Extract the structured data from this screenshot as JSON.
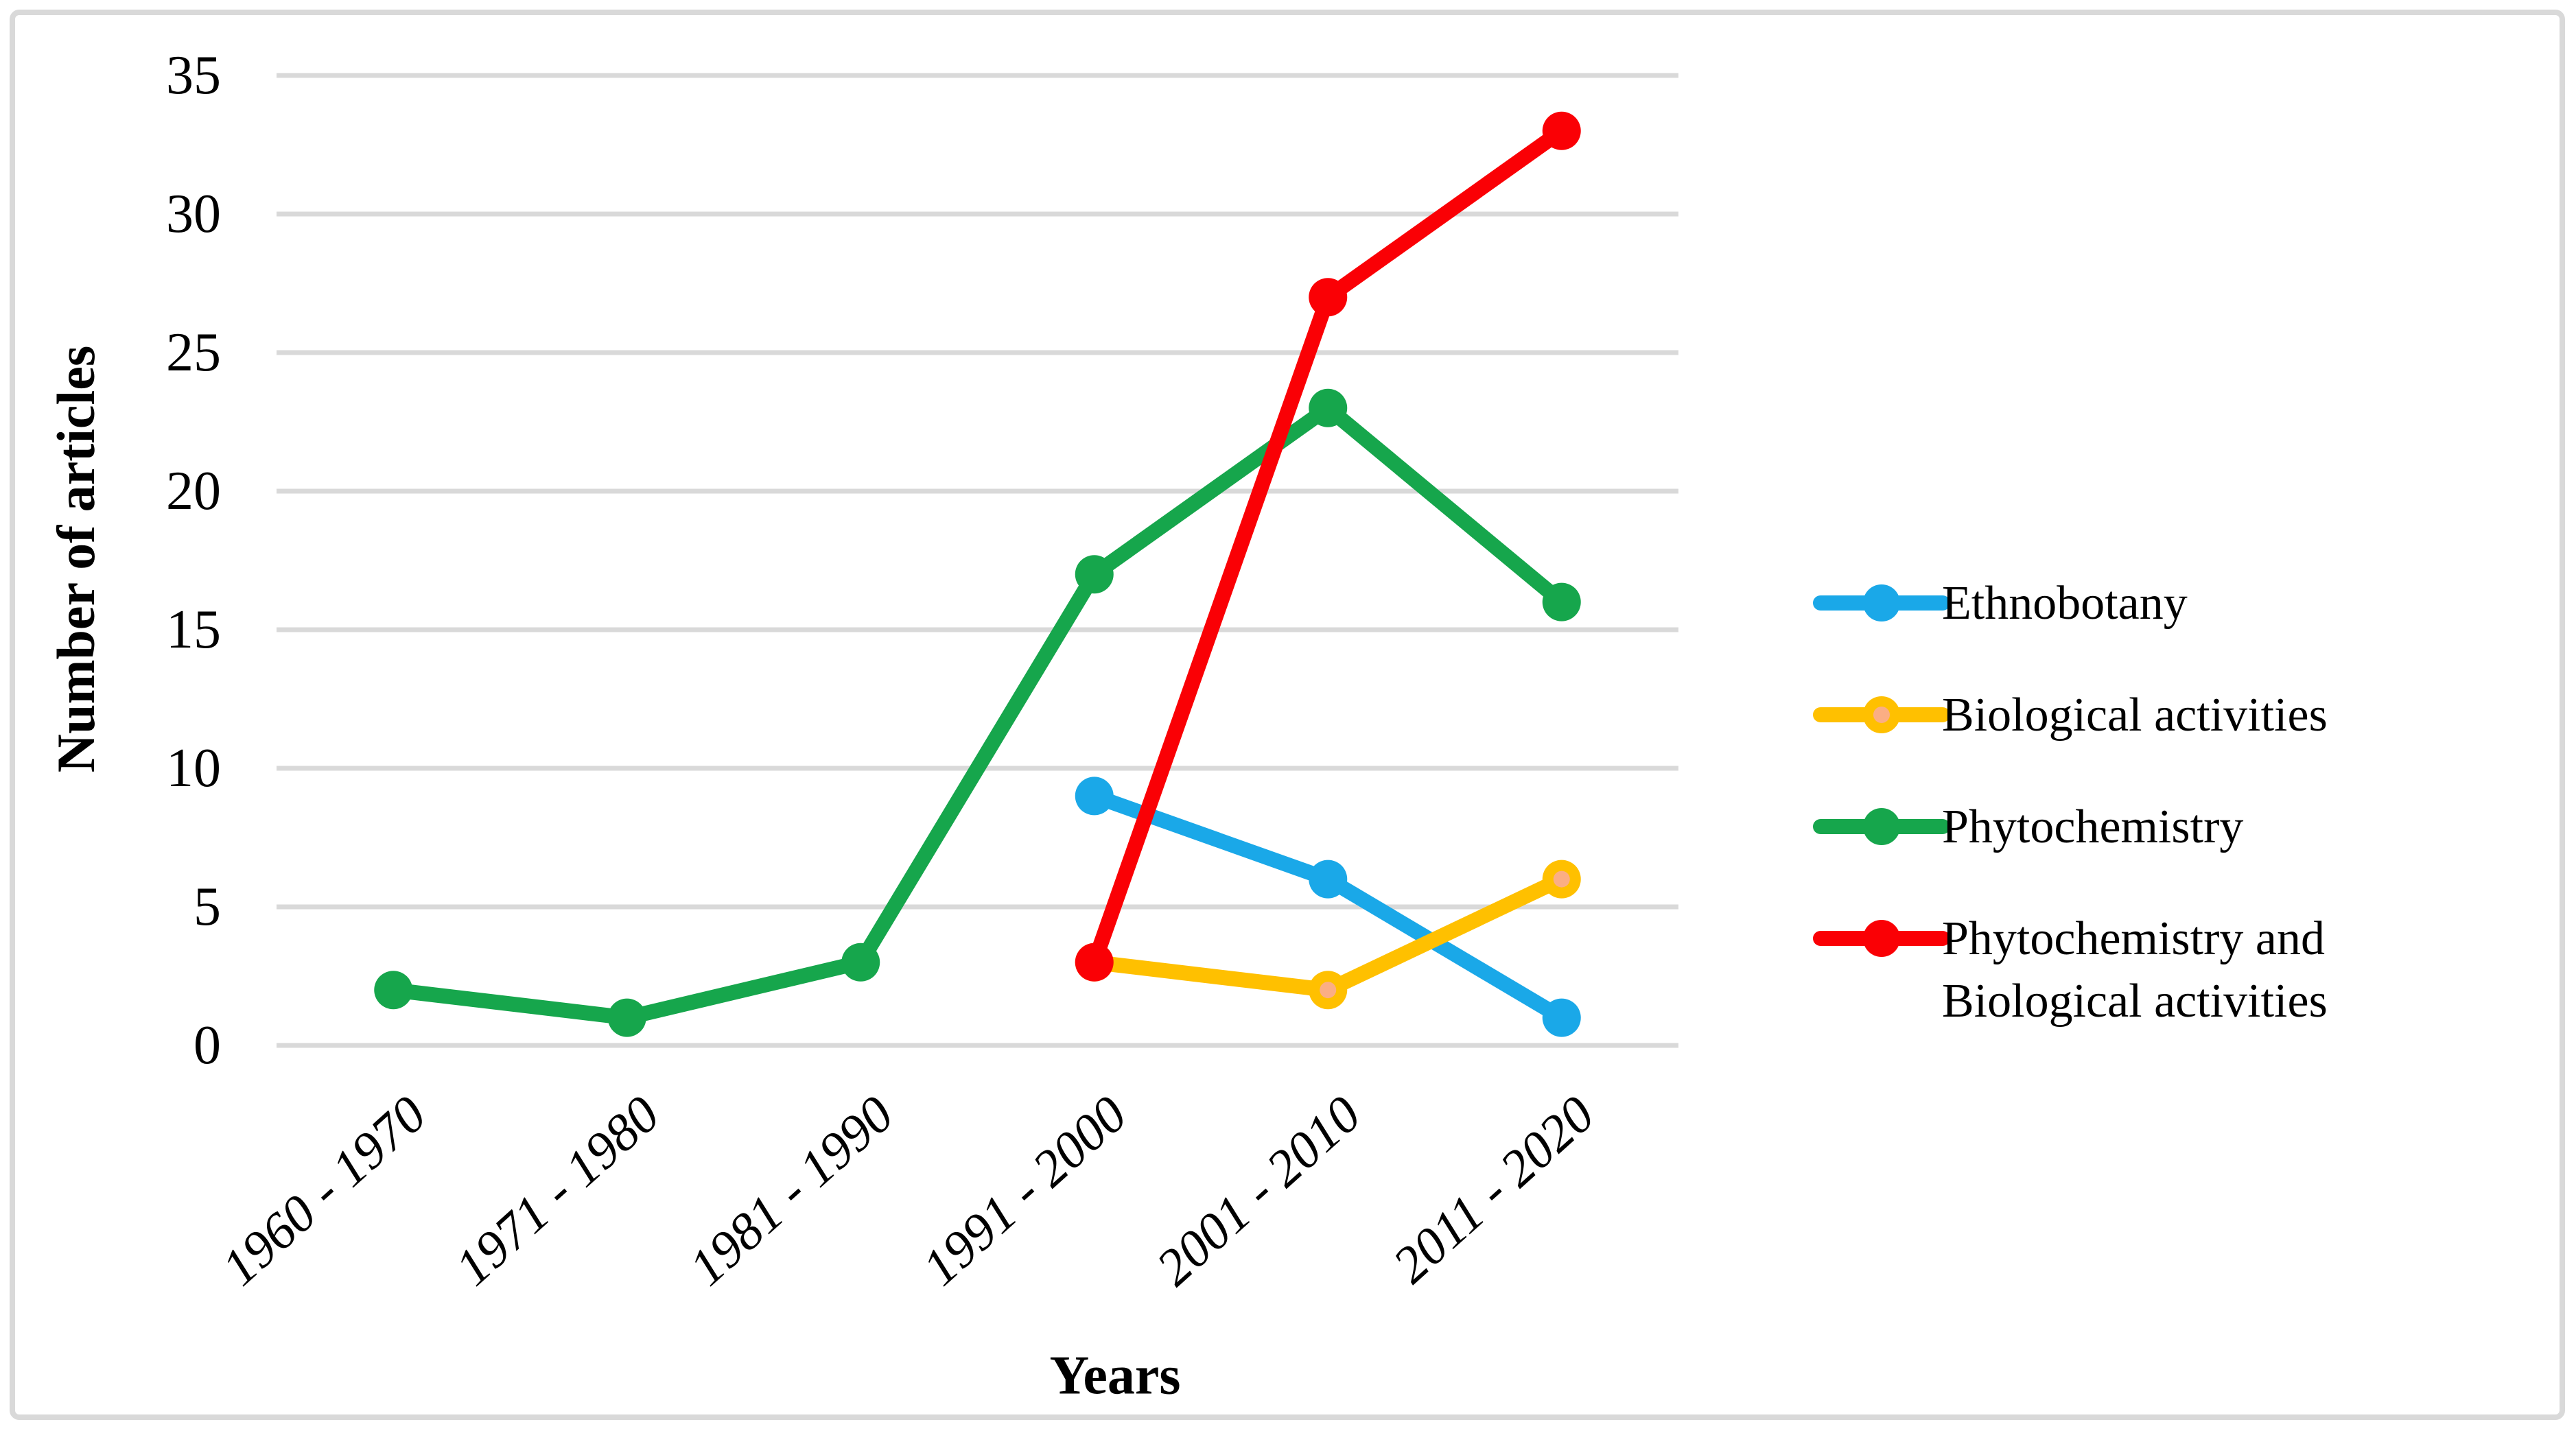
{
  "chart_data": {
    "type": "line",
    "title": "",
    "xlabel": "Years",
    "ylabel": "Number of articles",
    "categories": [
      "1960 - 1970",
      "1971 - 1980",
      "1981 - 1990",
      "1991 - 2000",
      "2001 - 2010",
      "2011 - 2020"
    ],
    "series": [
      {
        "name": "Ethnobotany",
        "legend_lines": [
          "Ethnobotany"
        ],
        "color": "#1AA8E8",
        "values": [
          null,
          null,
          null,
          9,
          6,
          1
        ]
      },
      {
        "name": "Biological activities",
        "legend_lines": [
          "Biological activities"
        ],
        "color": "#FFC000",
        "marker_center_color": "#FBAE84",
        "values": [
          null,
          null,
          null,
          3,
          2,
          6
        ]
      },
      {
        "name": "Phytochemistry",
        "legend_lines": [
          "Phytochemistry"
        ],
        "color": "#16A64C",
        "values": [
          2,
          1,
          3,
          17,
          23,
          16
        ]
      },
      {
        "name": "Phytochemistry and Biological activities",
        "legend_lines": [
          "Phytochemistry and",
          "Biological activities"
        ],
        "color": "#FA0005",
        "values": [
          null,
          null,
          null,
          3,
          27,
          33
        ]
      }
    ],
    "ylim": [
      0,
      35
    ],
    "yticks": [
      0,
      5,
      10,
      15,
      20,
      25,
      30,
      35
    ],
    "grid": "horizontal",
    "gridline_color": "#D9D9D9",
    "figure_border_color": "#D9D9D9",
    "background_color": "#FFFFFF",
    "legend_position": "right"
  }
}
